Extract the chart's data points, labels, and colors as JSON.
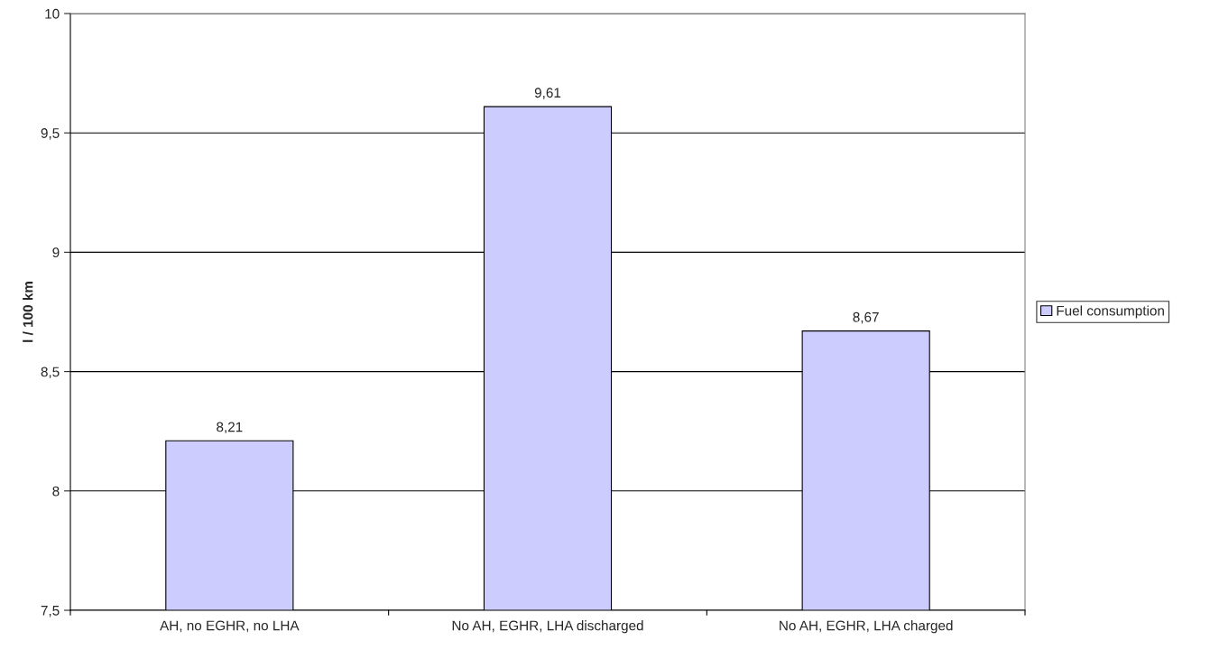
{
  "chart_data": {
    "type": "bar",
    "ylabel": "l / 100 km",
    "categories": [
      "AH, no EGHR, no LHA",
      "No AH, EGHR, LHA discharged",
      "No AH, EGHR, LHA charged"
    ],
    "series": [
      {
        "name": "Fuel consumption",
        "color": "#ccccff",
        "values": [
          8.21,
          9.61,
          8.67
        ],
        "value_labels": [
          "8,21",
          "9,61",
          "8,67"
        ]
      }
    ],
    "ylim": [
      7.5,
      10
    ],
    "yticks": [
      {
        "value": 7.5,
        "label": "7,5"
      },
      {
        "value": 8,
        "label": "8"
      },
      {
        "value": 8.5,
        "label": "8,5"
      },
      {
        "value": 9,
        "label": "9"
      },
      {
        "value": 9.5,
        "label": "9,5"
      },
      {
        "value": 10,
        "label": "10"
      }
    ],
    "grid": "y",
    "legend": "right"
  }
}
